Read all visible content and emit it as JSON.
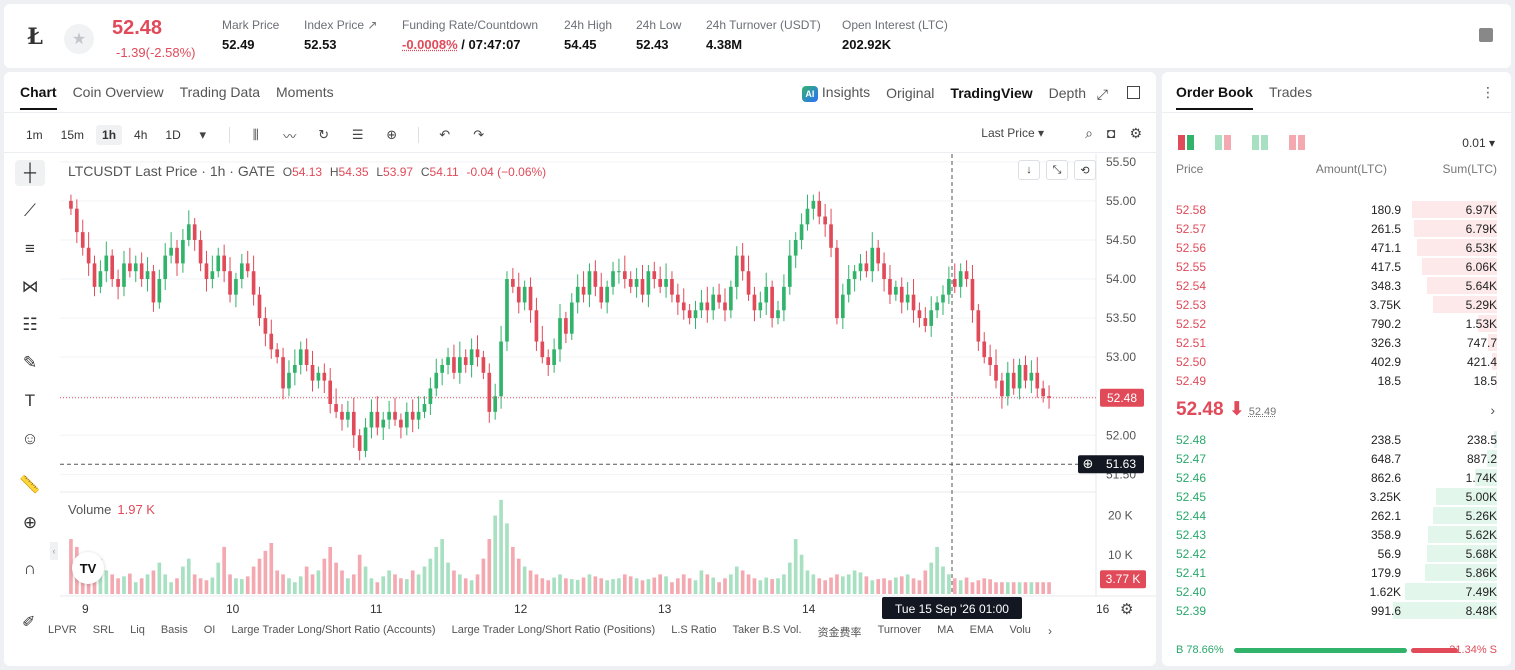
{
  "header": {
    "coin_icon": "litecoin-icon",
    "last_price": "52.48",
    "change": "-1.39(-2.58%)",
    "stats": [
      {
        "label": "Mark Price",
        "value": "52.49"
      },
      {
        "label": "Index Price ↗",
        "value": "52.53"
      },
      {
        "label": "Funding Rate/Countdown",
        "value_red": "-0.0008%",
        "value": " / 07:47:07"
      },
      {
        "label": "24h High",
        "value": "54.45"
      },
      {
        "label": "24h Low",
        "value": "52.43"
      },
      {
        "label": "24h Turnover (USDT)",
        "value": "4.38M"
      },
      {
        "label": "Open Interest (LTC)",
        "value": "202.92K"
      }
    ]
  },
  "chart_tabs": [
    "Chart",
    "Coin Overview",
    "Trading Data",
    "Moments"
  ],
  "view_tabs": {
    "insights": "Insights",
    "original": "Original",
    "tradingview": "TradingView",
    "depth": "Depth",
    "ai_badge": "AI"
  },
  "timeframes": [
    "1m",
    "15m",
    "1h",
    "4h",
    "1D"
  ],
  "price_type": "Last Price ▾",
  "legend": {
    "symbol": "LTCUSDT Last Price · 1h · GATE",
    "o_label": "O",
    "o": "54.13",
    "h_label": "H",
    "h": "54.35",
    "l_label": "L",
    "l": "53.97",
    "c_label": "C",
    "c": "54.11",
    "chg": "-0.04 (−0.06%)"
  },
  "volume_legend": {
    "label": "Volume",
    "value": "1.97 K"
  },
  "chart_data": {
    "type": "candlestick",
    "price_axis": [
      "55.50",
      "55.00",
      "54.50",
      "54.00",
      "53.50",
      "53.00",
      "52.50",
      "52.00",
      "51.50"
    ],
    "price_values": [
      55.5,
      55.0,
      54.5,
      54.0,
      53.5,
      53.0,
      52.5,
      52.0,
      51.5
    ],
    "volume_axis": [
      "20 K",
      "10 K"
    ],
    "volume_values": [
      20000,
      10000
    ],
    "time_axis": [
      "9",
      "10",
      "11",
      "12",
      "13",
      "14",
      "15",
      "16"
    ],
    "current_price_label": "52.48",
    "current_price": 52.48,
    "crosshair_price_label": "51.63",
    "crosshair_price": 51.63,
    "crosshair_time_label": "Tue 15 Sep '26   01:00",
    "current_volume_label": "3.77 K",
    "current_volume": 3770,
    "ylim": [
      51.3,
      55.6
    ],
    "closes": [
      54.9,
      54.6,
      54.4,
      54.2,
      53.9,
      54.1,
      54.3,
      54.0,
      53.9,
      54.2,
      54.1,
      54.2,
      54.0,
      54.1,
      53.7,
      54.0,
      54.3,
      54.4,
      54.2,
      54.5,
      54.7,
      54.5,
      54.2,
      54.0,
      54.1,
      54.3,
      54.1,
      53.8,
      54.0,
      54.2,
      54.1,
      53.8,
      53.5,
      53.3,
      53.1,
      53.0,
      52.6,
      52.8,
      52.9,
      53.1,
      52.9,
      52.7,
      52.8,
      52.7,
      52.4,
      52.3,
      52.2,
      52.3,
      52.0,
      51.8,
      52.1,
      52.3,
      52.1,
      52.2,
      52.3,
      52.2,
      52.1,
      52.3,
      52.2,
      52.3,
      52.4,
      52.6,
      52.8,
      52.9,
      53.0,
      52.8,
      53.0,
      52.9,
      53.1,
      53.0,
      52.8,
      52.3,
      52.5,
      53.2,
      54.0,
      53.9,
      53.7,
      53.9,
      53.6,
      53.2,
      53.0,
      52.9,
      53.1,
      53.5,
      53.3,
      53.7,
      53.9,
      53.8,
      54.1,
      53.9,
      53.7,
      53.9,
      54.1,
      54.1,
      54.0,
      53.9,
      54.0,
      53.8,
      54.1,
      54.0,
      53.9,
      54.0,
      53.8,
      53.7,
      53.6,
      53.5,
      53.6,
      53.7,
      53.6,
      53.8,
      53.7,
      53.6,
      53.9,
      54.3,
      54.1,
      53.8,
      53.6,
      53.7,
      53.9,
      53.5,
      53.6,
      53.9,
      54.3,
      54.5,
      54.7,
      54.9,
      55.0,
      54.8,
      54.7,
      54.4,
      53.5,
      53.8,
      54.0,
      54.1,
      54.2,
      54.1,
      54.4,
      54.2,
      54.0,
      53.8,
      53.9,
      53.7,
      53.8,
      53.6,
      53.5,
      53.4,
      53.6,
      53.7,
      53.8,
      54.0,
      53.9,
      54.1,
      54.0,
      53.6,
      53.2,
      53.0,
      52.9,
      52.7,
      52.5,
      52.8,
      52.6,
      52.9,
      52.7,
      52.8,
      52.6,
      52.5,
      52.48
    ],
    "volumes": [
      14000,
      12000,
      10000,
      8000,
      7000,
      9000,
      6000,
      5000,
      4000,
      4500,
      5200,
      3000,
      4000,
      5000,
      6000,
      8000,
      5000,
      3000,
      4000,
      7000,
      9000,
      5000,
      4000,
      3500,
      4200,
      8000,
      12000,
      5000,
      4000,
      3800,
      4500,
      7000,
      9000,
      11000,
      13000,
      6000,
      5000,
      4000,
      3000,
      4500,
      7000,
      5000,
      6000,
      9000,
      12000,
      8000,
      6000,
      4000,
      5000,
      10000,
      7000,
      4000,
      3000,
      4500,
      6000,
      5000,
      4000,
      3800,
      6000,
      5000,
      7000,
      9000,
      12000,
      14000,
      8000,
      6000,
      5000,
      4000,
      3500,
      5000,
      9000,
      14000,
      20000,
      24000,
      18000,
      12000,
      9000,
      7000,
      6000,
      5000,
      4000,
      3500,
      4200,
      5000,
      4000,
      3800,
      3600,
      4200,
      5000,
      4500,
      4000,
      3500,
      3800,
      4000,
      5000,
      4500,
      4000,
      3500,
      3800,
      4200,
      5000,
      4500,
      3000,
      4000,
      5000,
      4000,
      3500,
      6000,
      5000,
      4200,
      3000,
      4000,
      5000,
      7000,
      6000,
      5000,
      4000,
      3500,
      4200,
      3800,
      4000,
      5000,
      8000,
      14000,
      10000,
      6000,
      5000,
      4000,
      3500,
      4200,
      5000,
      4500,
      5000,
      6000,
      5500,
      4500,
      3500,
      3800,
      4000,
      3500,
      4200,
      4500,
      5000,
      4000,
      3500,
      6000,
      8000,
      12000,
      7000,
      5000,
      4000,
      3500,
      4200,
      3000,
      3500,
      4000,
      3770
    ]
  },
  "indicators": [
    "LPVR",
    "SRL",
    "Liq",
    "Basis",
    "OI",
    "Large Trader Long/Short Ratio (Accounts)",
    "Large Trader Long/Short Ratio (Positions)",
    "L.S Ratio",
    "Taker B.S Vol.",
    "资金费率",
    "Turnover",
    "MA",
    "EMA",
    "Volu"
  ],
  "orderbook": {
    "tabs": [
      "Order Book",
      "Trades"
    ],
    "precision": "0.01 ▾",
    "headers": {
      "price": "Price",
      "amount": "Amount(LTC)",
      "sum": "Sum(LTC)"
    },
    "asks": [
      {
        "price": "52.58",
        "amount": "180.9",
        "sum": "6.97K",
        "depth": 0.82
      },
      {
        "price": "52.57",
        "amount": "261.5",
        "sum": "6.79K",
        "depth": 0.8
      },
      {
        "price": "52.56",
        "amount": "471.1",
        "sum": "6.53K",
        "depth": 0.77
      },
      {
        "price": "52.55",
        "amount": "417.5",
        "sum": "6.06K",
        "depth": 0.72
      },
      {
        "price": "52.54",
        "amount": "348.3",
        "sum": "5.64K",
        "depth": 0.67
      },
      {
        "price": "52.53",
        "amount": "3.75K",
        "sum": "5.29K",
        "depth": 0.62
      },
      {
        "price": "52.52",
        "amount": "790.2",
        "sum": "1.53K",
        "depth": 0.18
      },
      {
        "price": "52.51",
        "amount": "326.3",
        "sum": "747.7",
        "depth": 0.09
      },
      {
        "price": "52.50",
        "amount": "402.9",
        "sum": "421.4",
        "depth": 0.05
      },
      {
        "price": "52.49",
        "amount": "18.5",
        "sum": "18.5",
        "depth": 0.01
      }
    ],
    "mid_price": "52.48 ⬇",
    "mid_mark": "52.49",
    "bids": [
      {
        "price": "52.48",
        "amount": "238.5",
        "sum": "238.5",
        "depth": 0.03
      },
      {
        "price": "52.47",
        "amount": "648.7",
        "sum": "887.2",
        "depth": 0.1
      },
      {
        "price": "52.46",
        "amount": "862.6",
        "sum": "1.74K",
        "depth": 0.21
      },
      {
        "price": "52.45",
        "amount": "3.25K",
        "sum": "5.00K",
        "depth": 0.59
      },
      {
        "price": "52.44",
        "amount": "262.1",
        "sum": "5.26K",
        "depth": 0.62
      },
      {
        "price": "52.43",
        "amount": "358.9",
        "sum": "5.62K",
        "depth": 0.66
      },
      {
        "price": "52.42",
        "amount": "56.9",
        "sum": "5.68K",
        "depth": 0.67
      },
      {
        "price": "52.41",
        "amount": "179.9",
        "sum": "5.86K",
        "depth": 0.69
      },
      {
        "price": "52.40",
        "amount": "1.62K",
        "sum": "7.49K",
        "depth": 0.88
      },
      {
        "price": "52.39",
        "amount": "991.6",
        "sum": "8.48K",
        "depth": 1.0
      }
    ],
    "buy_ratio": "B 78.66%",
    "sell_ratio": "21.34% S",
    "buy_fraction": 0.7866
  },
  "colors": {
    "up": "#31b36b",
    "down": "#e04a59",
    "up_vol": "#a8e0c2",
    "down_vol": "#f4a9b1"
  }
}
